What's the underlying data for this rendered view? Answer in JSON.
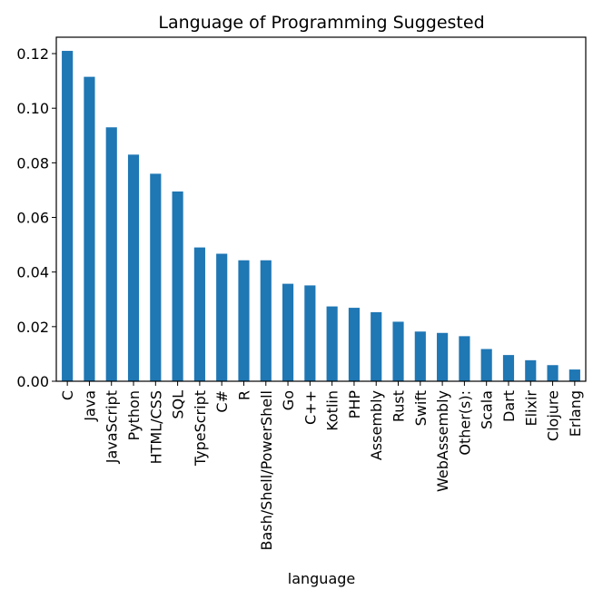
{
  "chart_data": {
    "type": "bar",
    "title": "Language of Programming Suggested",
    "xlabel": "language",
    "ylabel": "",
    "ylim": [
      0,
      0.126
    ],
    "yticks": [
      "0.00",
      "0.02",
      "0.04",
      "0.06",
      "0.08",
      "0.10",
      "0.12"
    ],
    "yticks_values": [
      0,
      0.02,
      0.04,
      0.06,
      0.08,
      0.1,
      0.12
    ],
    "grid": false,
    "bar_color": "#1f77b4",
    "categories": [
      "C",
      "Java",
      "JavaScript",
      "Python",
      "HTML/CSS",
      "SQL",
      "TypeScript",
      "C#",
      "R",
      "Bash/Shell/PowerShell",
      "Go",
      "C++",
      "Kotlin",
      "PHP",
      "Assembly",
      "Rust",
      "Swift",
      "WebAssembly",
      "Other(s):",
      "Scala",
      "Dart",
      "Elixir",
      "Clojure",
      "Erlang"
    ],
    "values": [
      0.121,
      0.1115,
      0.093,
      0.083,
      0.076,
      0.0695,
      0.049,
      0.0467,
      0.0443,
      0.0443,
      0.0357,
      0.0351,
      0.0274,
      0.0269,
      0.0253,
      0.0218,
      0.0182,
      0.0177,
      0.0165,
      0.0118,
      0.0096,
      0.0077,
      0.0059,
      0.0043
    ]
  }
}
